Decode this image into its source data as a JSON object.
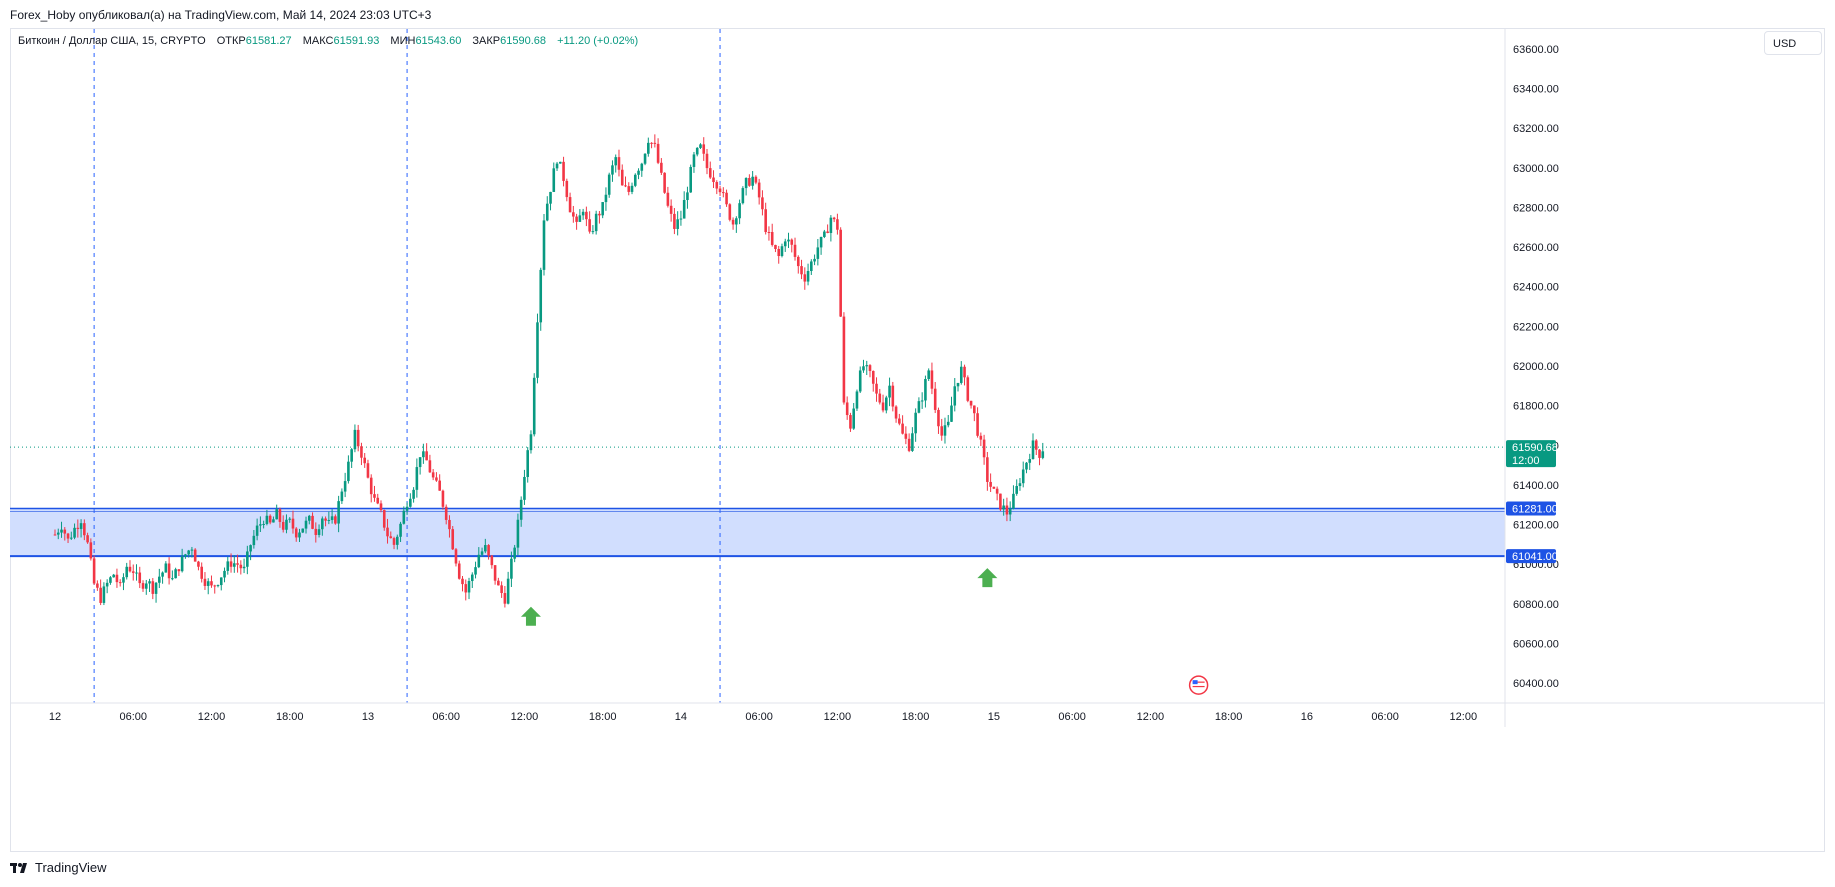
{
  "header": {
    "text": "Forex_Hoby опубликовал(а) на TradingView.com, Май 14, 2024 23:03 UTC+3"
  },
  "legend": {
    "symbol": "Биткоин / Доллар США, 15, CRYPTO",
    "open_label": "ОТКР",
    "open": "61581.27",
    "high_label": "МАКС",
    "high": "61591.93",
    "low_label": "МИН",
    "low": "61543.60",
    "close_label": "ЗАКР",
    "close": "61590.68",
    "change": "+11.20 (+0.02%)"
  },
  "currency": "USD",
  "footer": {
    "brand": "TradingView"
  },
  "colors": {
    "up": "#089981",
    "down": "#f23645",
    "zone": "#d1defe",
    "zone_line": "#1e53e5",
    "arrow": "#4caf50"
  },
  "chart_data": {
    "type": "candlestick",
    "ylim": [
      60300,
      63700
    ],
    "y_ticks": [
      60400,
      60600,
      60800,
      61000,
      61200,
      61400,
      61600,
      61800,
      62000,
      62200,
      62400,
      62600,
      62800,
      63000,
      63200,
      63400,
      63600
    ],
    "y_tick_labels": [
      "60400.00",
      "60600.00",
      "60800.00",
      "61000.00",
      "61200.00",
      "61400.00",
      "61600.00",
      "61800.00",
      "62000.00",
      "62200.00",
      "62400.00",
      "62600.00",
      "62800.00",
      "63000.00",
      "63200.00",
      "63400.00",
      "63600.00"
    ],
    "x_ticks": [
      {
        "t": 0,
        "label": "12"
      },
      {
        "t": 6,
        "label": "06:00"
      },
      {
        "t": 12,
        "label": "12:00"
      },
      {
        "t": 18,
        "label": "18:00"
      },
      {
        "t": 24,
        "label": "13"
      },
      {
        "t": 30,
        "label": "06:00"
      },
      {
        "t": 36,
        "label": "12:00"
      },
      {
        "t": 42,
        "label": "18:00"
      },
      {
        "t": 48,
        "label": "14"
      },
      {
        "t": 54,
        "label": "06:00"
      },
      {
        "t": 60,
        "label": "12:00"
      },
      {
        "t": 66,
        "label": "18:00"
      },
      {
        "t": 72,
        "label": "15"
      },
      {
        "t": 78,
        "label": "06:00"
      },
      {
        "t": 84,
        "label": "12:00"
      },
      {
        "t": 90,
        "label": "18:00"
      },
      {
        "t": 96,
        "label": "16"
      },
      {
        "t": 102,
        "label": "06:00"
      },
      {
        "t": 108,
        "label": "12:00"
      }
    ],
    "session_lines_t": [
      3,
      27,
      51
    ],
    "price_path": [
      [
        0.0,
        61150
      ],
      [
        0.5,
        61200
      ],
      [
        1.0,
        61120
      ],
      [
        1.5,
        61180
      ],
      [
        2.0,
        61230
      ],
      [
        2.5,
        61100
      ],
      [
        3.0,
        60900
      ],
      [
        3.5,
        60830
      ],
      [
        4.0,
        60900
      ],
      [
        4.5,
        60950
      ],
      [
        5.0,
        60880
      ],
      [
        5.5,
        60990
      ],
      [
        6.0,
        60970
      ],
      [
        6.5,
        60890
      ],
      [
        7.0,
        60920
      ],
      [
        7.5,
        60880
      ],
      [
        8.0,
        60940
      ],
      [
        8.5,
        60980
      ],
      [
        9.0,
        60920
      ],
      [
        9.5,
        60990
      ],
      [
        10.0,
        61050
      ],
      [
        10.5,
        61090
      ],
      [
        11.0,
        60980
      ],
      [
        11.5,
        60920
      ],
      [
        12.0,
        60880
      ],
      [
        12.5,
        60920
      ],
      [
        13.0,
        60970
      ],
      [
        13.5,
        61010
      ],
      [
        14.0,
        61000
      ],
      [
        14.5,
        60970
      ],
      [
        15.0,
        61100
      ],
      [
        15.5,
        61180
      ],
      [
        16.0,
        61230
      ],
      [
        16.5,
        61200
      ],
      [
        17.0,
        61250
      ],
      [
        17.5,
        61190
      ],
      [
        18.0,
        61210
      ],
      [
        18.5,
        61160
      ],
      [
        19.0,
        61190
      ],
      [
        19.5,
        61220
      ],
      [
        20.0,
        61170
      ],
      [
        20.5,
        61240
      ],
      [
        21.0,
        61200
      ],
      [
        21.5,
        61230
      ],
      [
        22.0,
        61380
      ],
      [
        22.5,
        61500
      ],
      [
        23.0,
        61650
      ],
      [
        23.5,
        61560
      ],
      [
        24.0,
        61430
      ],
      [
        24.5,
        61320
      ],
      [
        25.0,
        61250
      ],
      [
        25.5,
        61150
      ],
      [
        26.0,
        61100
      ],
      [
        26.5,
        61200
      ],
      [
        27.0,
        61320
      ],
      [
        27.5,
        61400
      ],
      [
        28.0,
        61560
      ],
      [
        28.5,
        61520
      ],
      [
        29.0,
        61430
      ],
      [
        29.5,
        61360
      ],
      [
        30.0,
        61250
      ],
      [
        30.5,
        61100
      ],
      [
        31.0,
        60950
      ],
      [
        31.5,
        60860
      ],
      [
        32.0,
        60950
      ],
      [
        32.5,
        61050
      ],
      [
        33.0,
        61080
      ],
      [
        33.5,
        60980
      ],
      [
        34.0,
        60880
      ],
      [
        34.5,
        60830
      ],
      [
        35.0,
        61000
      ],
      [
        35.5,
        61200
      ],
      [
        36.0,
        61460
      ],
      [
        36.5,
        61680
      ],
      [
        37.0,
        62250
      ],
      [
        37.5,
        62750
      ],
      [
        38.0,
        62900
      ],
      [
        38.5,
        63050
      ],
      [
        39.0,
        62950
      ],
      [
        39.5,
        62800
      ],
      [
        40.0,
        62700
      ],
      [
        40.5,
        62800
      ],
      [
        41.0,
        62650
      ],
      [
        41.5,
        62750
      ],
      [
        42.0,
        62800
      ],
      [
        42.5,
        62950
      ],
      [
        43.0,
        63050
      ],
      [
        43.5,
        62900
      ],
      [
        44.0,
        62880
      ],
      [
        44.5,
        62980
      ],
      [
        45.0,
        63030
      ],
      [
        45.5,
        63150
      ],
      [
        46.0,
        63100
      ],
      [
        46.5,
        62950
      ],
      [
        47.0,
        62800
      ],
      [
        47.5,
        62700
      ],
      [
        48.0,
        62750
      ],
      [
        48.5,
        62900
      ],
      [
        49.0,
        63050
      ],
      [
        49.5,
        63100
      ],
      [
        50.0,
        63000
      ],
      [
        50.5,
        62950
      ],
      [
        51.0,
        62900
      ],
      [
        51.5,
        62800
      ],
      [
        52.0,
        62720
      ],
      [
        52.5,
        62830
      ],
      [
        53.0,
        62920
      ],
      [
        53.5,
        62950
      ],
      [
        54.0,
        62850
      ],
      [
        54.5,
        62700
      ],
      [
        55.0,
        62600
      ],
      [
        55.5,
        62550
      ],
      [
        56.0,
        62650
      ],
      [
        56.5,
        62600
      ],
      [
        57.0,
        62500
      ],
      [
        57.5,
        62450
      ],
      [
        58.0,
        62520
      ],
      [
        58.5,
        62600
      ],
      [
        59.0,
        62650
      ],
      [
        59.5,
        62750
      ],
      [
        60.0,
        62700
      ],
      [
        60.5,
        61800
      ],
      [
        61.0,
        61700
      ],
      [
        61.5,
        61900
      ],
      [
        62.0,
        62000
      ],
      [
        62.5,
        61950
      ],
      [
        63.0,
        61850
      ],
      [
        63.5,
        61800
      ],
      [
        64.0,
        61900
      ],
      [
        64.5,
        61750
      ],
      [
        65.0,
        61650
      ],
      [
        65.5,
        61600
      ],
      [
        66.0,
        61750
      ],
      [
        66.5,
        61850
      ],
      [
        67.0,
        61980
      ],
      [
        67.5,
        61800
      ],
      [
        68.0,
        61650
      ],
      [
        68.5,
        61700
      ],
      [
        69.0,
        61900
      ],
      [
        69.5,
        61980
      ],
      [
        70.0,
        61850
      ],
      [
        70.5,
        61750
      ],
      [
        71.0,
        61600
      ],
      [
        71.5,
        61430
      ],
      [
        72.0,
        61360
      ],
      [
        72.5,
        61300
      ],
      [
        73.0,
        61260
      ],
      [
        73.5,
        61330
      ],
      [
        74.0,
        61430
      ],
      [
        74.5,
        61520
      ],
      [
        75.0,
        61600
      ],
      [
        75.5,
        61560
      ],
      [
        75.8,
        61590
      ]
    ],
    "current_price": 61590.68,
    "current_price_label": "61590.68",
    "current_time_label": "12:00",
    "zone": {
      "top": 61281.0,
      "top_label": "61281.00",
      "bottom": 61041.0,
      "bottom_label": "61041.00"
    },
    "arrows": [
      {
        "t": 36.5,
        "price": 60735
      },
      {
        "t": 71.5,
        "price": 60930
      }
    ],
    "event_marker": {
      "t": 87.7,
      "price": 60390,
      "icon": "us-flag-icon"
    }
  }
}
